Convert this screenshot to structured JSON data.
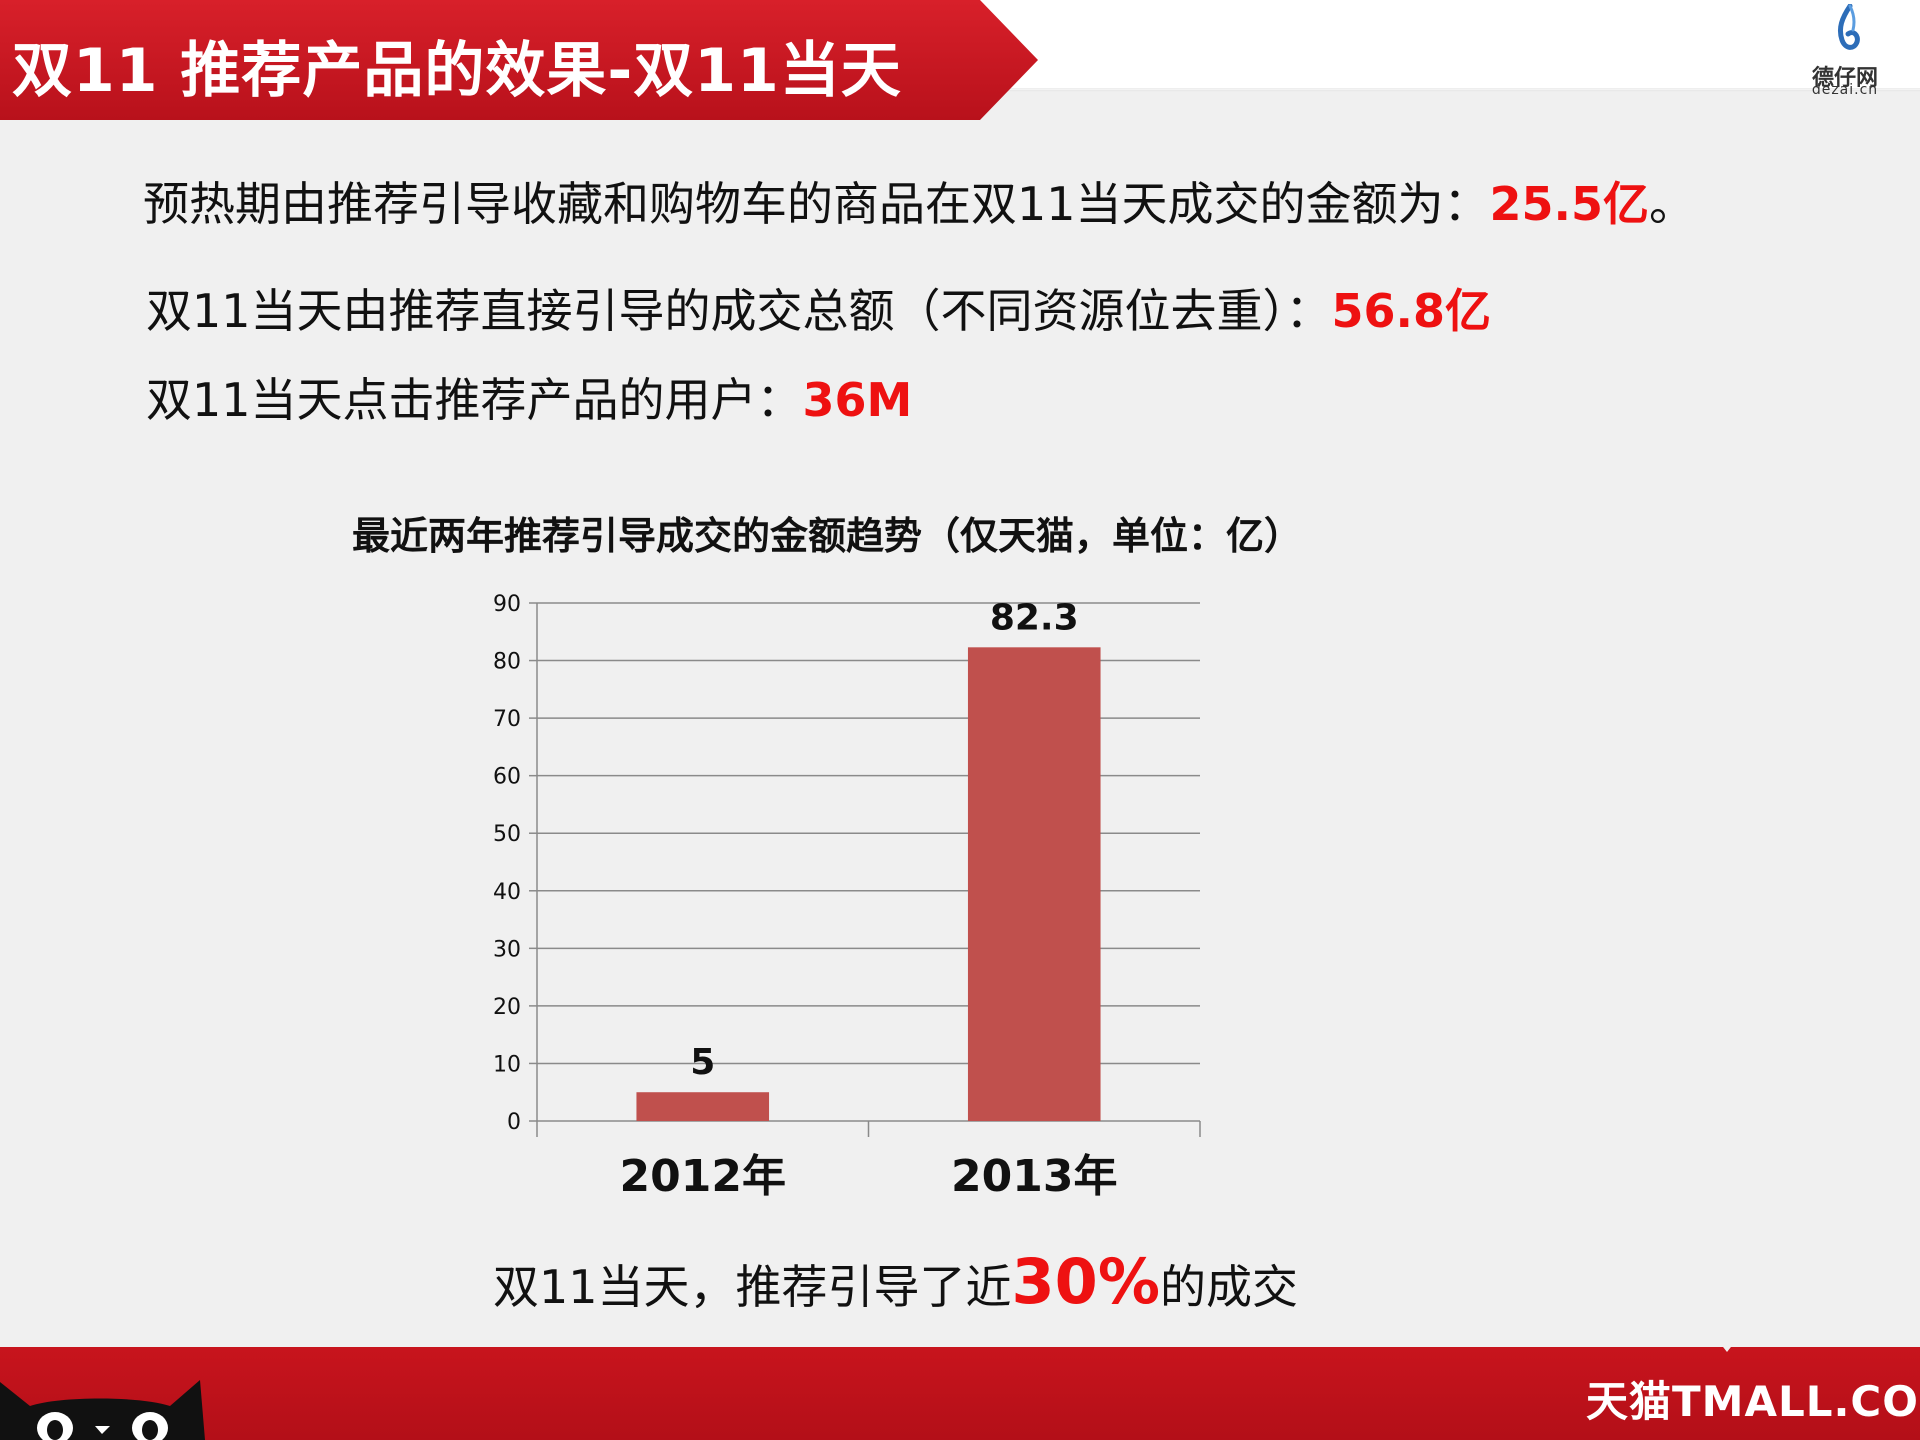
{
  "header": {
    "title": "双11 推荐产品的效果-双11当天",
    "logo_cn": "德仔网",
    "logo_en": "dezai.cn"
  },
  "summary": [
    {
      "text": "预热期由推荐引导收藏和购物车的商品在双11当天成交的金额为：",
      "value": "25.5亿",
      "suffix": "。"
    },
    {
      "text": "双11当天由推荐直接引导的成交总额（不同资源位去重）：",
      "value": "56.8亿",
      "suffix": ""
    },
    {
      "text": "双11当天点击推荐产品的用户：",
      "value": "36M",
      "suffix": ""
    }
  ],
  "chart_data": {
    "type": "bar",
    "title": "最近两年推荐引导成交的金额趋势（仅天猫，单位：亿）",
    "categories": [
      "2012年",
      "2013年"
    ],
    "values": [
      5,
      82.3
    ],
    "data_labels": [
      "5",
      "82.3"
    ],
    "ylim": [
      0,
      90
    ],
    "yticks": [
      0,
      10,
      20,
      30,
      40,
      50,
      60,
      70,
      80,
      90
    ],
    "grid": true,
    "bar_color": "#c0504d"
  },
  "caption": {
    "prefix": "双11当天，推荐引导了近",
    "highlight": "30%",
    "suffix": "的成交"
  },
  "footer": {
    "brand": "天猫TMALL.COM"
  },
  "colors": {
    "accent": "#d8202a",
    "highlight": "#ee1111"
  }
}
